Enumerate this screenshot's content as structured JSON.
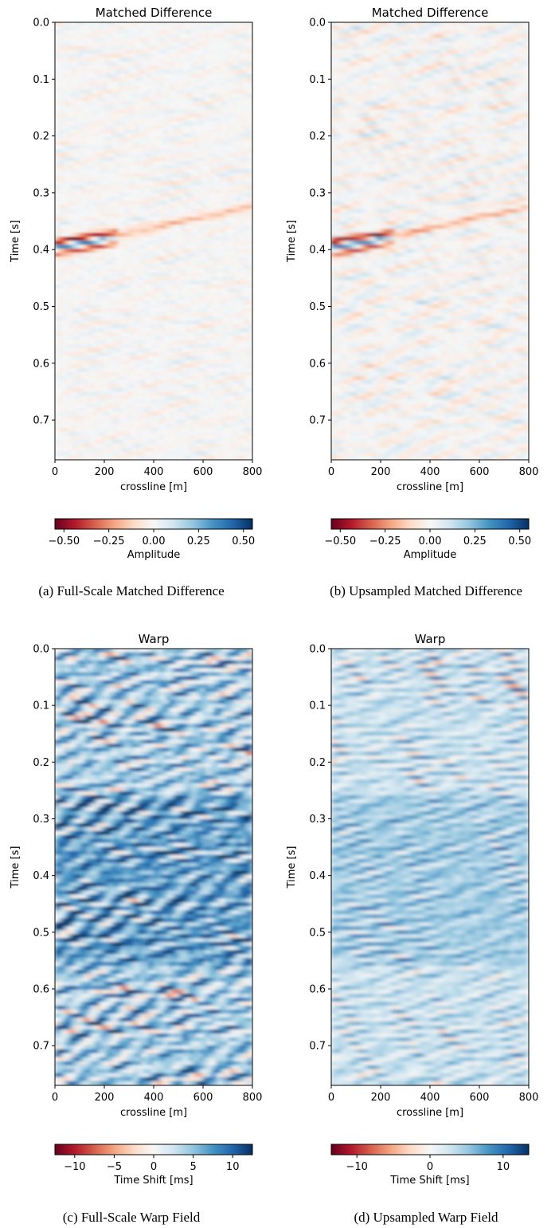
{
  "panels": [
    {
      "title": "Matched Difference",
      "caption": "(a) Full-Scale Matched Difference",
      "ylabel": "Time [s]",
      "xlabel": "crossline [m]",
      "xticks": [
        "0",
        "200",
        "400",
        "600",
        "800"
      ],
      "yticks": [
        "0.0",
        "0.1",
        "0.2",
        "0.3",
        "0.4",
        "0.5",
        "0.6",
        "0.7"
      ],
      "cbar_label": "Amplitude",
      "cbar_ticks": [
        "−0.50",
        "−0.25",
        "0.00",
        "0.25",
        "0.50"
      ]
    },
    {
      "title": "Matched Difference",
      "caption": "(b) Upsampled Matched Difference",
      "ylabel": "Time [s]",
      "xlabel": "crossline [m]",
      "xticks": [
        "0",
        "200",
        "400",
        "600",
        "800"
      ],
      "yticks": [
        "0.0",
        "0.1",
        "0.2",
        "0.3",
        "0.4",
        "0.5",
        "0.6",
        "0.7"
      ],
      "cbar_label": "Amplitude",
      "cbar_ticks": [
        "−0.50",
        "−0.25",
        "0.00",
        "0.25",
        "0.50"
      ]
    },
    {
      "title": "Warp",
      "caption": "(c) Full-Scale Warp Field",
      "ylabel": "Time [s]",
      "xlabel": "crossline [m]",
      "xticks": [
        "0",
        "200",
        "400",
        "600",
        "800"
      ],
      "yticks": [
        "0.0",
        "0.1",
        "0.2",
        "0.3",
        "0.4",
        "0.5",
        "0.6",
        "0.7"
      ],
      "cbar_label": "Time Shift [ms]",
      "cbar_ticks": [
        "−10",
        "−5",
        "0",
        "5",
        "10"
      ]
    },
    {
      "title": "Warp",
      "caption": "(d) Upsampled Warp Field",
      "ylabel": "Time [s]",
      "xlabel": "crossline [m]",
      "xticks": [
        "0",
        "200",
        "400",
        "600",
        "800"
      ],
      "yticks": [
        "0.0",
        "0.1",
        "0.2",
        "0.3",
        "0.4",
        "0.5",
        "0.6",
        "0.7"
      ],
      "cbar_label": "Time Shift [ms]",
      "cbar_ticks": [
        "−10",
        "0",
        "10"
      ]
    }
  ],
  "chart_data": [
    {
      "type": "heatmap",
      "title": "Matched Difference",
      "xlabel": "crossline [m]",
      "ylabel": "Time [s]",
      "xlim": [
        0,
        800
      ],
      "ylim": [
        0.77,
        0.0
      ],
      "colormap": "RdBu",
      "colorbar": {
        "label": "Amplitude",
        "range": [
          -0.55,
          0.55
        ],
        "ticks": [
          -0.5,
          -0.25,
          0.0,
          0.25,
          0.5
        ]
      }
    },
    {
      "type": "heatmap",
      "title": "Matched Difference",
      "xlabel": "crossline [m]",
      "ylabel": "Time [s]",
      "xlim": [
        0,
        800
      ],
      "ylim": [
        0.77,
        0.0
      ],
      "colormap": "RdBu",
      "colorbar": {
        "label": "Amplitude",
        "range": [
          -0.55,
          0.55
        ],
        "ticks": [
          -0.5,
          -0.25,
          0.0,
          0.25,
          0.5
        ]
      }
    },
    {
      "type": "heatmap",
      "title": "Warp",
      "xlabel": "crossline [m]",
      "ylabel": "Time [s]",
      "xlim": [
        0,
        800
      ],
      "ylim": [
        0.77,
        0.0
      ],
      "colormap": "RdBu",
      "colorbar": {
        "label": "Time Shift [ms]",
        "range": [
          -12.5,
          12.5
        ],
        "ticks": [
          -10,
          -5,
          0,
          5,
          10
        ]
      }
    },
    {
      "type": "heatmap",
      "title": "Warp",
      "xlabel": "crossline [m]",
      "ylabel": "Time [s]",
      "xlim": [
        0,
        800
      ],
      "ylim": [
        0.77,
        0.0
      ],
      "colormap": "RdBu",
      "colorbar": {
        "label": "Time Shift [ms]",
        "range": [
          -13.5,
          13.5
        ],
        "ticks": [
          -10,
          0,
          10
        ]
      }
    }
  ]
}
